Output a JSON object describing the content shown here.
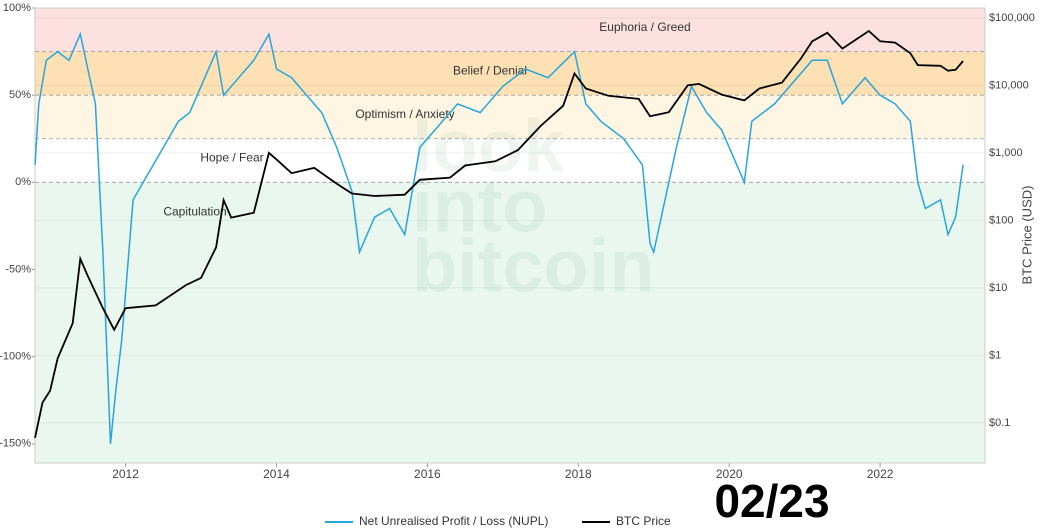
{
  "chart_data": {
    "type": "line",
    "x_scale": "linear",
    "y2_scale": "log",
    "xlim": [
      2010.8,
      2023.39
    ],
    "xticks": [
      2012,
      2014,
      2016,
      2018,
      2020,
      2022
    ],
    "ylim": [
      -161,
      100
    ],
    "yticks": [
      {
        "value": 100,
        "label": "100%"
      },
      {
        "value": 50,
        "label": "50%"
      },
      {
        "value": 0,
        "label": "0%"
      },
      {
        "value": -50,
        "label": "-50%"
      },
      {
        "value": -100,
        "label": "-100%"
      },
      {
        "value": -150,
        "label": "-150%"
      }
    ],
    "y2lim": [
      0.0255,
      140000
    ],
    "y2ticks": [
      {
        "value": 100000,
        "label": "$100,000"
      },
      {
        "value": 10000,
        "label": "$10,000"
      },
      {
        "value": 1000,
        "label": "$1,000"
      },
      {
        "value": 100,
        "label": "$100"
      },
      {
        "value": 10,
        "label": "$10"
      },
      {
        "value": 1,
        "label": "$1"
      },
      {
        "value": 0.1,
        "label": "$0.1"
      }
    ],
    "y2_label": "BTC Price (USD)",
    "zones": [
      {
        "name": "Euphoria / Greed",
        "from": 75,
        "to": 100,
        "color": "#fde1e1"
      },
      {
        "name": "Belief / Denial",
        "from": 50,
        "to": 75,
        "color": "#fde0b4"
      },
      {
        "name": "Optimism / Anxiety",
        "from": 25,
        "to": 50,
        "color": "#fef5e3"
      },
      {
        "name": "Hope / Fear",
        "from": 0,
        "to": 25,
        "color": "#ffffff"
      },
      {
        "name": "Capitulation",
        "from": -161,
        "to": 0,
        "color": "#e9f7ef"
      }
    ],
    "watermark": [
      "look",
      "into",
      "bitcoin"
    ],
    "stamp": "02/23",
    "series": [
      {
        "name": "Net Unrealised Profit / Loss (NUPL)",
        "color": "#27a6db",
        "axis": "y",
        "x": [
          2010.8,
          2010.85,
          2010.95,
          2011.1,
          2011.25,
          2011.4,
          2011.5,
          2011.6,
          2011.7,
          2011.8,
          2011.87,
          2011.95,
          2012.1,
          2012.3,
          2012.5,
          2012.7,
          2012.85,
          2013.0,
          2013.2,
          2013.3,
          2013.5,
          2013.7,
          2013.9,
          2014.0,
          2014.2,
          2014.4,
          2014.6,
          2014.8,
          2015.0,
          2015.1,
          2015.3,
          2015.5,
          2015.7,
          2015.9,
          2016.1,
          2016.4,
          2016.7,
          2017.0,
          2017.3,
          2017.6,
          2017.95,
          2018.1,
          2018.3,
          2018.6,
          2018.85,
          2018.95,
          2019.0,
          2019.3,
          2019.5,
          2019.7,
          2019.9,
          2020.2,
          2020.3,
          2020.6,
          2020.9,
          2021.1,
          2021.3,
          2021.5,
          2021.8,
          2022.0,
          2022.2,
          2022.4,
          2022.5,
          2022.6,
          2022.8,
          2022.9,
          2023.0,
          2023.1
        ],
        "values": [
          10,
          45,
          70,
          75,
          70,
          85,
          65,
          45,
          -40,
          -150,
          -120,
          -90,
          -10,
          5,
          20,
          35,
          40,
          55,
          75,
          50,
          60,
          70,
          85,
          65,
          60,
          50,
          40,
          20,
          -5,
          -40,
          -20,
          -15,
          -30,
          20,
          30,
          45,
          40,
          55,
          65,
          60,
          75,
          45,
          35,
          25,
          10,
          -35,
          -40,
          20,
          55,
          40,
          30,
          0,
          35,
          45,
          60,
          70,
          70,
          45,
          60,
          50,
          45,
          35,
          0,
          -15,
          -10,
          -30,
          -20,
          10
        ]
      },
      {
        "name": "BTC Price",
        "color": "#000000",
        "axis": "y2",
        "x": [
          2010.8,
          2010.9,
          2011.0,
          2011.1,
          2011.3,
          2011.4,
          2011.5,
          2011.7,
          2011.85,
          2012.0,
          2012.4,
          2012.8,
          2013.0,
          2013.2,
          2013.3,
          2013.4,
          2013.7,
          2013.9,
          2014.0,
          2014.2,
          2014.5,
          2014.8,
          2015.0,
          2015.3,
          2015.7,
          2015.9,
          2016.3,
          2016.5,
          2016.9,
          2017.2,
          2017.5,
          2017.8,
          2017.95,
          2018.1,
          2018.4,
          2018.8,
          2018.95,
          2019.2,
          2019.45,
          2019.6,
          2019.9,
          2020.2,
          2020.4,
          2020.7,
          2020.95,
          2021.1,
          2021.3,
          2021.5,
          2021.85,
          2022.0,
          2022.2,
          2022.4,
          2022.5,
          2022.8,
          2022.9,
          2023.0,
          2023.1
        ],
        "values": [
          0.06,
          0.2,
          0.3,
          0.9,
          3,
          27,
          15,
          5,
          2.4,
          5,
          5.5,
          11,
          14,
          40,
          200,
          110,
          130,
          1000,
          800,
          500,
          600,
          350,
          250,
          230,
          240,
          400,
          430,
          650,
          750,
          1100,
          2500,
          5000,
          15000,
          9000,
          7000,
          6300,
          3500,
          4000,
          10000,
          10500,
          7300,
          6000,
          9000,
          11000,
          25000,
          45000,
          60000,
          35000,
          64000,
          45000,
          43000,
          30000,
          20000,
          19500,
          16500,
          17000,
          23000
        ]
      }
    ]
  }
}
